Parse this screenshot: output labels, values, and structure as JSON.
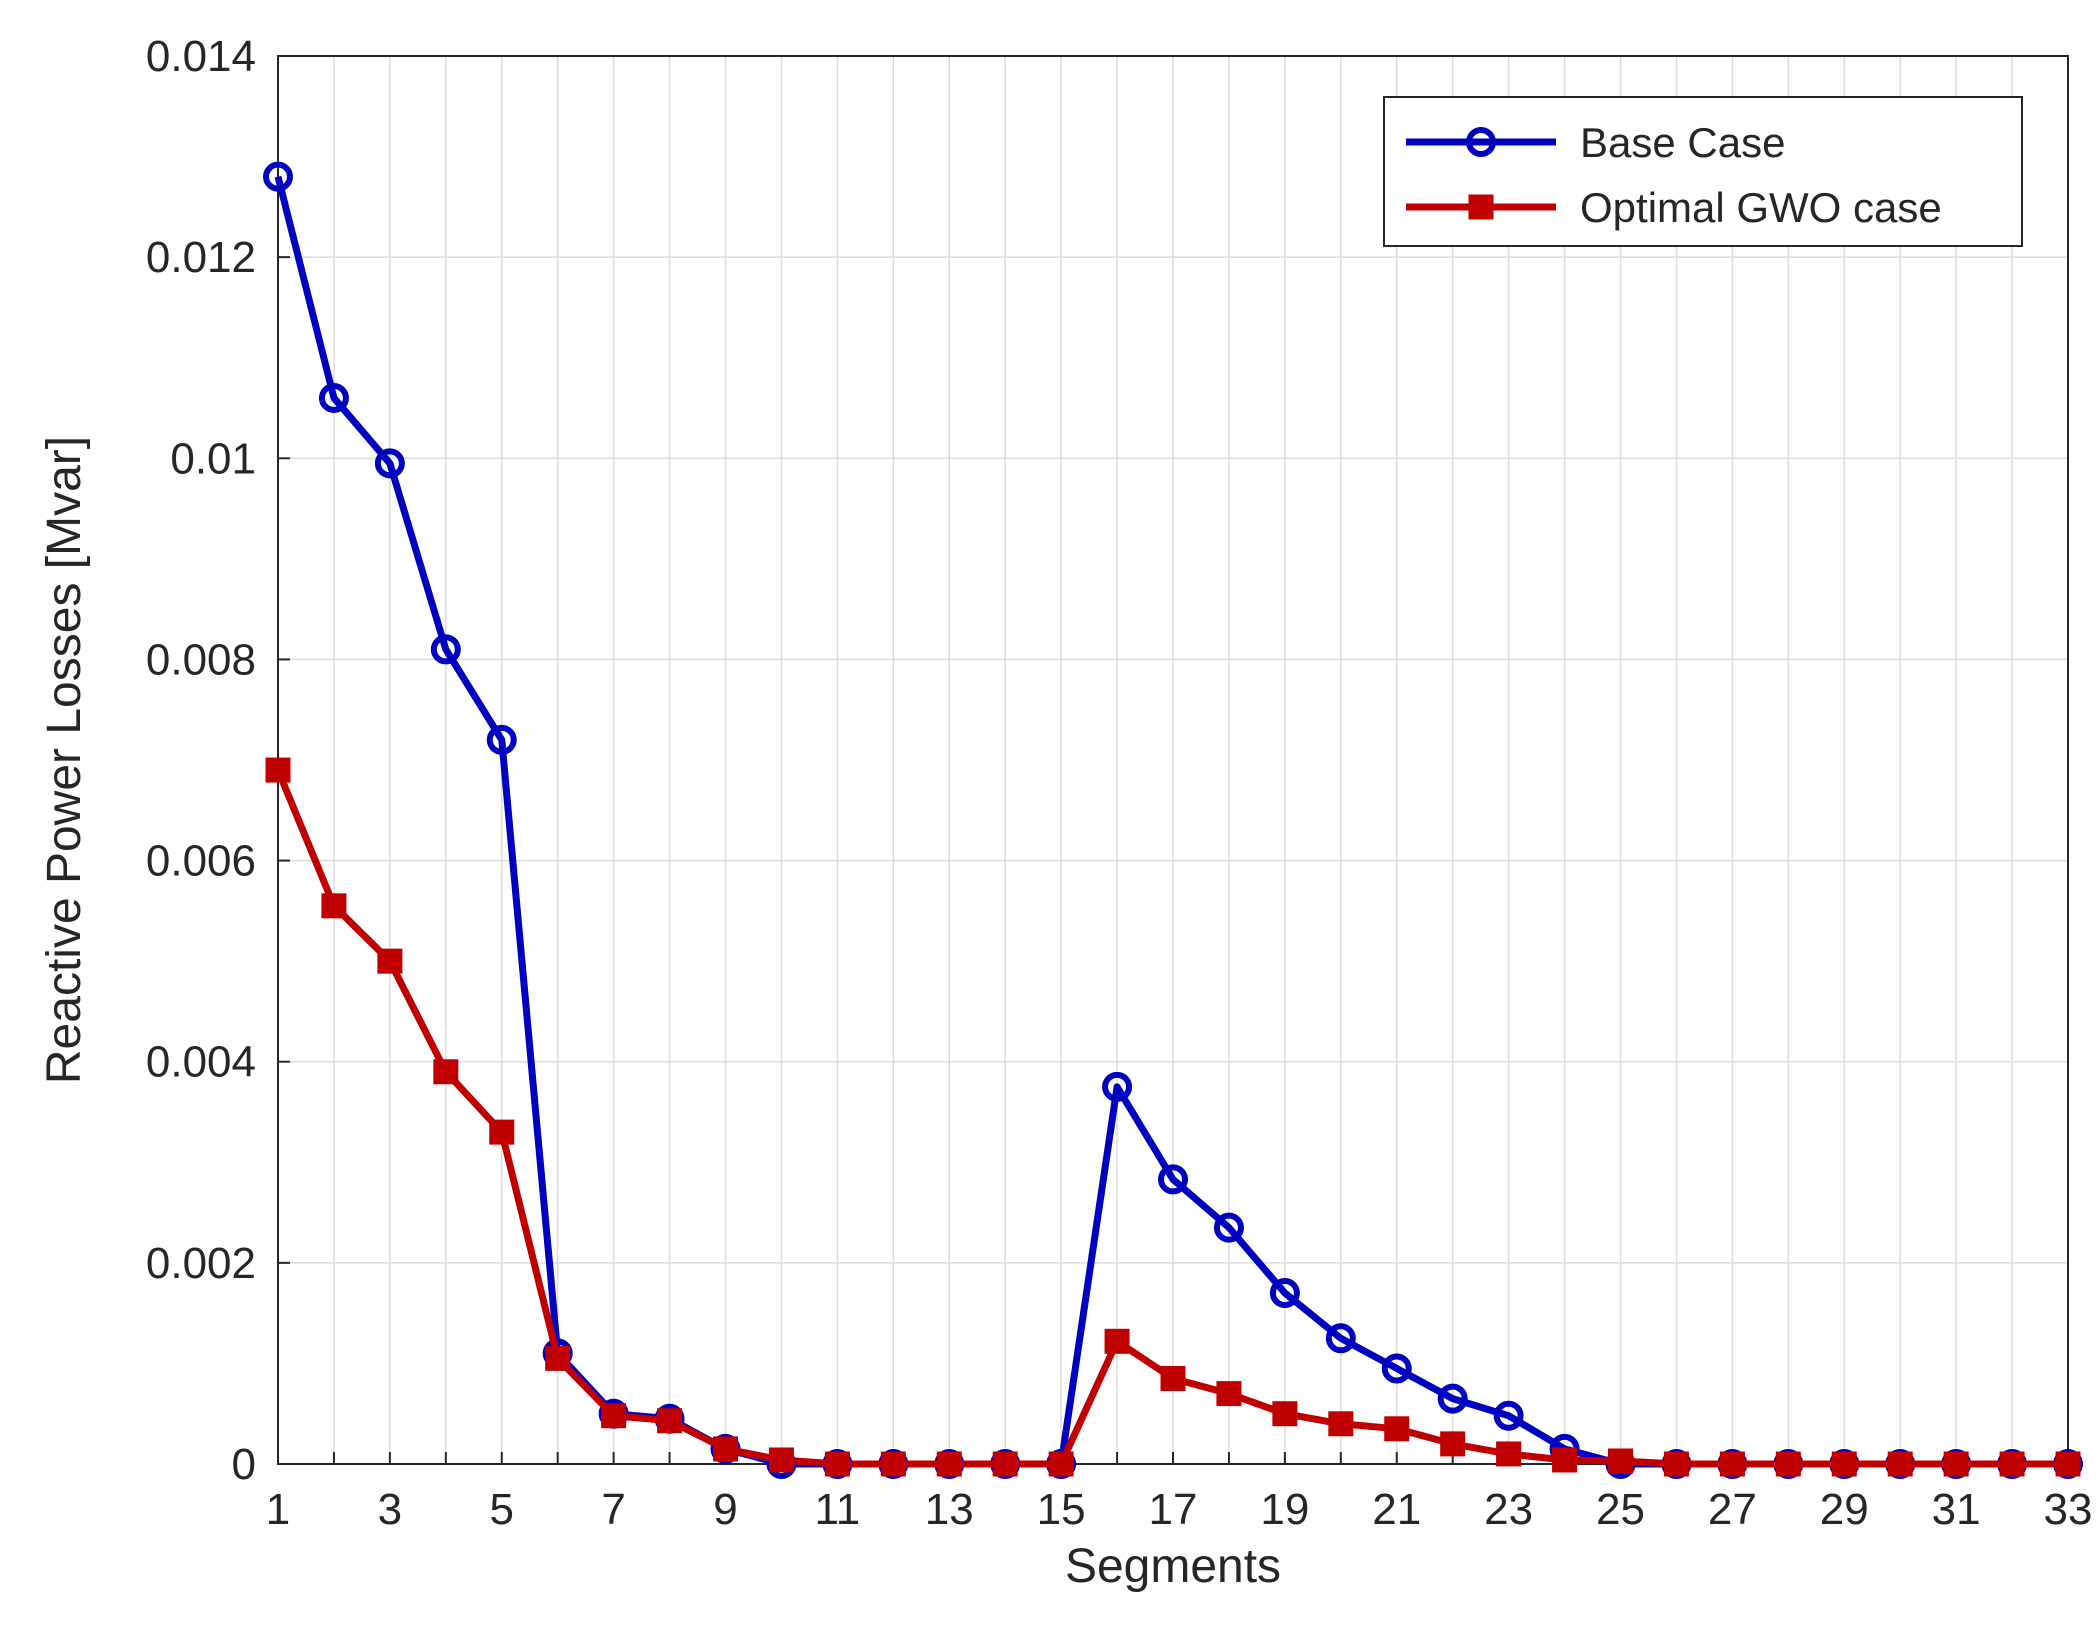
{
  "chart_data": {
    "type": "line",
    "xlabel": "Segments",
    "ylabel": "Reactive Power Losses [Mvar]",
    "xlim": [
      1,
      33
    ],
    "ylim": [
      0,
      0.014
    ],
    "x_ticks": [
      1,
      3,
      5,
      7,
      9,
      11,
      13,
      15,
      17,
      19,
      21,
      23,
      25,
      27,
      29,
      31,
      33
    ],
    "x_tick_labels": [
      "1",
      "3",
      "5",
      "7",
      "9",
      "11",
      "13",
      "15",
      "17",
      "19",
      "21",
      "23",
      "25",
      "27",
      "29",
      "31",
      "33"
    ],
    "y_ticks": [
      0,
      0.002,
      0.004,
      0.006,
      0.008,
      0.01,
      0.012,
      0.014
    ],
    "y_tick_labels": [
      "0",
      "0.002",
      "0.004",
      "0.006",
      "0.008",
      "0.01",
      "0.012",
      "0.014"
    ],
    "grid": true,
    "legend_position": "top-right",
    "x": [
      1,
      2,
      3,
      4,
      5,
      6,
      7,
      8,
      9,
      10,
      11,
      12,
      13,
      14,
      15,
      16,
      17,
      18,
      19,
      20,
      21,
      22,
      23,
      24,
      25,
      26,
      27,
      28,
      29,
      30,
      31,
      32,
      33
    ],
    "series": [
      {
        "name": "Base Case",
        "color": "#0000c0",
        "marker": "circle",
        "values": [
          0.0128,
          0.0106,
          0.00995,
          0.0081,
          0.0072,
          0.0011,
          0.0005,
          0.00045,
          0.00015,
          0.0,
          0.0,
          0.0,
          0.0,
          0.0,
          0.0,
          0.00375,
          0.00283,
          0.00235,
          0.0017,
          0.00125,
          0.00095,
          0.00065,
          0.00048,
          0.00015,
          0.0,
          0.0,
          0.0,
          0.0,
          0.0,
          0.0,
          0.0,
          0.0,
          0.0
        ]
      },
      {
        "name": "Optimal GWO case",
        "color": "#c00000",
        "marker": "square",
        "values": [
          0.0069,
          0.00555,
          0.005,
          0.0039,
          0.0033,
          0.00105,
          0.00048,
          0.00043,
          0.00015,
          4e-05,
          0.0,
          0.0,
          0.0,
          0.0,
          0.0,
          0.00122,
          0.00085,
          0.0007,
          0.0005,
          0.0004,
          0.00035,
          0.0002,
          0.0001,
          4e-05,
          3e-05,
          0.0,
          0.0,
          0.0,
          0.0,
          0.0,
          0.0,
          0.0,
          0.0
        ]
      }
    ]
  }
}
